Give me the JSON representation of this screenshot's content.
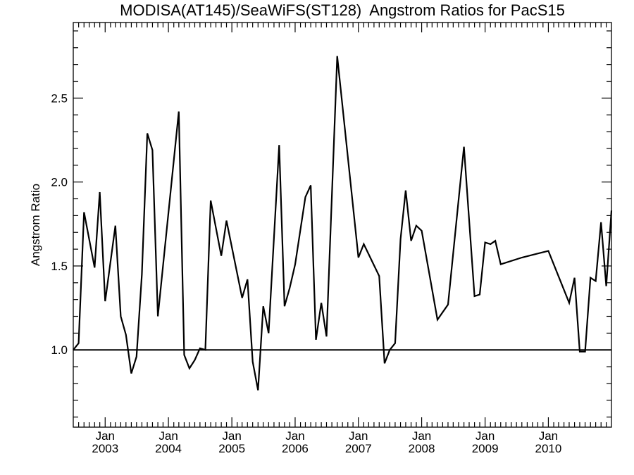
{
  "chart_data": {
    "type": "line",
    "title": "MODISA(AT145)/SeaWiFS(ST128)  Angstrom Ratios for PacS15",
    "xlabel": "",
    "ylabel": "Angstrom Ratio",
    "xlim": [
      "2002-07-01",
      "2010-12-31"
    ],
    "ylim": [
      0.54,
      2.95
    ],
    "y_ticks": [
      "1.0",
      "1.5",
      "2.0",
      "2.5"
    ],
    "x_ticks": [
      {
        "month": "Jan",
        "year": "2003"
      },
      {
        "month": "Jan",
        "year": "2004"
      },
      {
        "month": "Jan",
        "year": "2005"
      },
      {
        "month": "Jan",
        "year": "2006"
      },
      {
        "month": "Jan",
        "year": "2007"
      },
      {
        "month": "Jan",
        "year": "2008"
      },
      {
        "month": "Jan",
        "year": "2009"
      },
      {
        "month": "Jan",
        "year": "2010"
      }
    ],
    "reference_line": 1.0,
    "grid": false,
    "series": [
      {
        "color": "#000000",
        "points": [
          [
            "2002-07-01",
            1.0
          ],
          [
            "2002-08-01",
            1.04
          ],
          [
            "2002-09-01",
            1.82
          ],
          [
            "2002-11-01",
            1.49
          ],
          [
            "2002-12-01",
            1.94
          ],
          [
            "2003-01-01",
            1.29
          ],
          [
            "2003-03-01",
            1.74
          ],
          [
            "2003-04-01",
            1.2
          ],
          [
            "2003-05-01",
            1.09
          ],
          [
            "2003-06-01",
            0.86
          ],
          [
            "2003-07-01",
            0.96
          ],
          [
            "2003-08-01",
            1.45
          ],
          [
            "2003-09-01",
            2.29
          ],
          [
            "2003-10-01",
            2.19
          ],
          [
            "2003-11-01",
            1.2
          ],
          [
            "2004-03-01",
            2.42
          ],
          [
            "2004-04-01",
            0.97
          ],
          [
            "2004-05-01",
            0.89
          ],
          [
            "2004-06-01",
            0.94
          ],
          [
            "2004-07-01",
            1.01
          ],
          [
            "2004-08-01",
            1.0
          ],
          [
            "2004-09-01",
            1.89
          ],
          [
            "2004-11-01",
            1.56
          ],
          [
            "2004-12-01",
            1.77
          ],
          [
            "2005-03-01",
            1.31
          ],
          [
            "2005-04-01",
            1.42
          ],
          [
            "2005-05-01",
            0.93
          ],
          [
            "2005-06-01",
            0.76
          ],
          [
            "2005-07-01",
            1.26
          ],
          [
            "2005-08-01",
            1.1
          ],
          [
            "2005-10-01",
            2.22
          ],
          [
            "2005-11-01",
            1.26
          ],
          [
            "2005-12-01",
            1.37
          ],
          [
            "2006-01-01",
            1.51
          ],
          [
            "2006-03-01",
            1.91
          ],
          [
            "2006-04-01",
            1.98
          ],
          [
            "2006-05-01",
            1.06
          ],
          [
            "2006-06-01",
            1.28
          ],
          [
            "2006-07-01",
            1.08
          ],
          [
            "2006-09-01",
            2.75
          ],
          [
            "2007-01-01",
            1.55
          ],
          [
            "2007-02-01",
            1.63
          ],
          [
            "2007-05-01",
            1.44
          ],
          [
            "2007-06-01",
            0.92
          ],
          [
            "2007-07-01",
            1.0
          ],
          [
            "2007-08-01",
            1.04
          ],
          [
            "2007-09-01",
            1.66
          ],
          [
            "2007-10-01",
            1.95
          ],
          [
            "2007-11-01",
            1.65
          ],
          [
            "2007-12-01",
            1.74
          ],
          [
            "2008-01-01",
            1.71
          ],
          [
            "2008-04-01",
            1.18
          ],
          [
            "2008-06-01",
            1.27
          ],
          [
            "2008-09-01",
            2.21
          ],
          [
            "2008-11-01",
            1.32
          ],
          [
            "2008-12-01",
            1.33
          ],
          [
            "2009-01-01",
            1.64
          ],
          [
            "2009-02-01",
            1.63
          ],
          [
            "2009-03-01",
            1.65
          ],
          [
            "2009-04-01",
            1.51
          ],
          [
            "2009-08-01",
            1.55
          ],
          [
            "2010-01-01",
            1.59
          ],
          [
            "2010-05-01",
            1.28
          ],
          [
            "2010-06-01",
            1.43
          ],
          [
            "2010-07-01",
            0.99
          ],
          [
            "2010-08-01",
            0.99
          ],
          [
            "2010-09-01",
            1.43
          ],
          [
            "2010-10-01",
            1.41
          ],
          [
            "2010-11-01",
            1.76
          ],
          [
            "2010-12-01",
            1.38
          ],
          [
            "2010-12-31",
            1.83
          ]
        ]
      }
    ]
  }
}
